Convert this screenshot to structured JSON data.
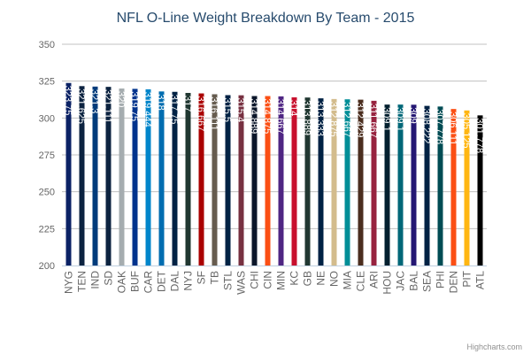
{
  "chart_data": {
    "type": "bar",
    "title": "NFL O-Line Weight Breakdown By Team - 2015",
    "xlabel": "",
    "ylabel": "",
    "ylim": [
      200,
      350
    ],
    "yticks": [
      "200",
      "225",
      "250",
      "275",
      "300",
      "325",
      "350"
    ],
    "grid": true,
    "categories": [
      "NYG",
      "TEN",
      "IND",
      "SD",
      "OAK",
      "BUF",
      "CAR",
      "DET",
      "DAL",
      "NYJ",
      "SF",
      "TB",
      "STL",
      "WAS",
      "CHI",
      "CIN",
      "MIN",
      "KC",
      "GB",
      "NE",
      "NO",
      "MIA",
      "CLE",
      "ARI",
      "HOU",
      "JAC",
      "BAL",
      "SEA",
      "PHI",
      "DEN",
      "PIT",
      "ATL"
    ],
    "values": [
      323.75,
      321.625,
      321.3,
      321.111,
      320,
      319.75,
      319.444,
      318,
      317.75,
      317,
      316.667,
      316.111,
      315.5,
      315.4,
      314.889,
      314.875,
      314.667,
      314,
      313.889,
      313.333,
      312.875,
      312.667,
      312.429,
      311.667,
      309.1,
      309.1,
      309,
      308.222,
      307.778,
      306.111,
      305.125,
      301.778
    ],
    "labels": [
      "323.75",
      "321.625",
      "321.3",
      "321.111",
      "320",
      "319.75",
      "319.444",
      "318",
      "317.75",
      "317",
      "316.667",
      "316.111",
      "315.5",
      "315.4",
      "314.889",
      "314.875",
      "314.667",
      "314",
      "313.889",
      "313.333",
      "312.875",
      "312.667",
      "312.429",
      "311.667",
      "309.1",
      "309.1",
      "309",
      "308.222",
      "307.778",
      "306.111",
      "305.125",
      "301.778"
    ],
    "colors": [
      "#0b2265",
      "#0c2340",
      "#003b7b",
      "#0c2340",
      "#a5acaf",
      "#00338d",
      "#0085ca",
      "#006db0",
      "#002244",
      "#203731",
      "#aa0000",
      "#665c4f",
      "#002244",
      "#773141",
      "#0b162a",
      "#fb4f14",
      "#4f2683",
      "#c8102e",
      "#203731",
      "#002244",
      "#d3bc8d",
      "#008e97",
      "#4b2e1f",
      "#97233f",
      "#03202f",
      "#006778",
      "#241773",
      "#002244",
      "#004c54",
      "#fb4f14",
      "#ffb612",
      "#000000"
    ],
    "credit": "Highcharts.com"
  }
}
